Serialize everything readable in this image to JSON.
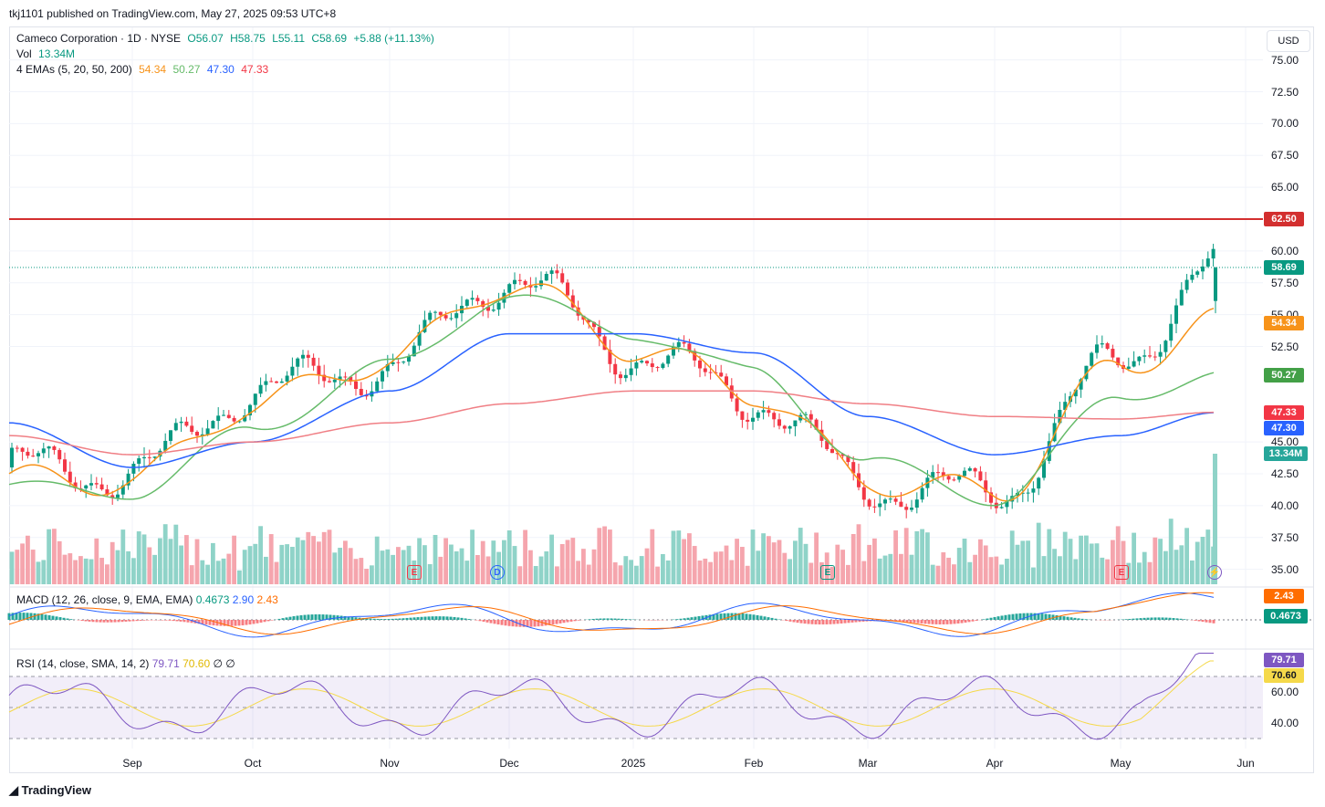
{
  "header": {
    "publish_text": "tkj1101 published on TradingView.com, May 27, 2025 09:53 UTC+8",
    "symbol": "Cameco Corporation · 1D · NYSE",
    "open": "O56.07",
    "high": "H58.75",
    "low": "L55.11",
    "close": "C58.69",
    "change": "+5.88 (+11.13%)",
    "vol_label": "Vol",
    "vol_value": "13.34M",
    "ema_label": "4 EMAs (5, 20, 50, 200)",
    "ema5": "54.34",
    "ema20": "50.27",
    "ema50": "47.30",
    "ema200": "47.33",
    "currency": "USD"
  },
  "macd_legend": {
    "label": "MACD (12, 26, close, 9, EMA, EMA)",
    "hist": "0.4673",
    "macd": "2.90",
    "signal": "2.43"
  },
  "rsi_legend": {
    "label": "RSI (14, close, SMA, 14, 2)",
    "rsi": "79.71",
    "sma": "70.60",
    "extra1": "∅",
    "extra2": "∅"
  },
  "price_tags": {
    "resistance": "62.50",
    "last": "58.69",
    "ema5": "54.34",
    "ema20": "50.27",
    "ema200": "47.33",
    "ema50": "47.30",
    "volume": "13.34M",
    "macd_signal": "2.43",
    "macd_hist": "0.4673",
    "rsi": "79.71",
    "rsi_sma": "70.60"
  },
  "y_axis_ticks": [
    "75.00",
    "72.50",
    "70.00",
    "67.50",
    "65.00",
    "60.00",
    "57.50",
    "55.00",
    "52.50",
    "45.00",
    "42.50",
    "40.00",
    "37.50",
    "35.00"
  ],
  "rsi_axis_ticks": [
    "60.00",
    "40.00"
  ],
  "x_axis_ticks": [
    "Sep",
    "Oct",
    "Nov",
    "Dec",
    "2025",
    "Feb",
    "Mar",
    "Apr",
    "May",
    "Jun"
  ],
  "event_badges": [
    "E",
    "D",
    "E",
    "E"
  ],
  "footer": {
    "logo": "TradingView"
  },
  "colors": {
    "up": "#089981",
    "down": "#f23645",
    "ema5": "#f7931a",
    "ema20": "#66bb6a",
    "ema50": "#2962ff",
    "ema200": "#f23645",
    "rsi": "#7e57c2",
    "rsi_sma": "#f5d94a",
    "macd": "#2962ff",
    "signal": "#ff6d00"
  },
  "chart_data": {
    "type": "line",
    "title": "Cameco Corporation · 1D · NYSE",
    "x": [
      "2024-08",
      "2024-09",
      "2024-10",
      "2024-11",
      "2024-12",
      "2025-01",
      "2025-02",
      "2025-03",
      "2025-04",
      "2025-05",
      "2025-05-27"
    ],
    "series": [
      {
        "name": "Price",
        "values": [
          43.0,
          42.5,
          49.0,
          51.0,
          58.0,
          52.0,
          48.5,
          41.5,
          41.0,
          51.5,
          58.69
        ]
      },
      {
        "name": "EMA 5",
        "values": [
          42.0,
          42.0,
          48.0,
          51.5,
          57.5,
          52.5,
          49.0,
          42.0,
          41.0,
          51.0,
          54.34
        ]
      },
      {
        "name": "EMA 20",
        "values": [
          41.5,
          41.0,
          46.0,
          51.0,
          56.5,
          53.5,
          50.5,
          43.5,
          40.5,
          48.5,
          50.27
        ]
      },
      {
        "name": "EMA 50",
        "values": [
          46.5,
          43.0,
          45.0,
          49.0,
          53.5,
          53.5,
          52.0,
          47.0,
          44.0,
          45.5,
          47.3
        ]
      },
      {
        "name": "EMA 200",
        "values": [
          45.5,
          44.0,
          45.0,
          46.5,
          48.0,
          49.0,
          49.0,
          48.0,
          47.0,
          46.8,
          47.33
        ]
      }
    ],
    "resistance_line": 62.5,
    "last_volume": "13.34M",
    "ylim": [
      34.0,
      76.5
    ],
    "rsi_levels": [
      70,
      50,
      30
    ],
    "grid": true,
    "legend": "top-left"
  }
}
